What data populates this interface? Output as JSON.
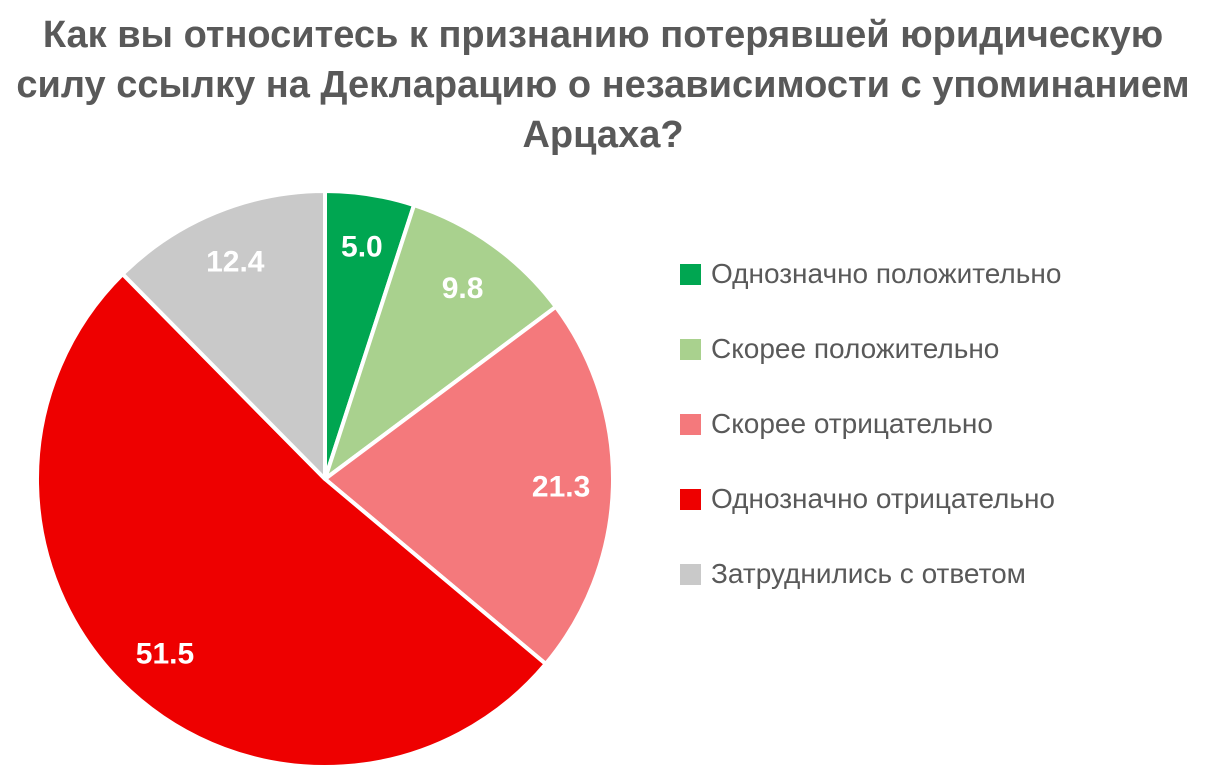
{
  "chart_data": {
    "type": "pie",
    "title": "Как вы относитесь к признанию потерявшей юридическую силу ссылку на Декларацию о независимости с упоминанием Арцаха?",
    "categories": [
      "Однозначно положительно",
      "Скорее положительно",
      "Скорее отрицательно",
      "Однозначно отрицательно",
      "Затруднились с ответом"
    ],
    "values": [
      5.0,
      9.8,
      21.3,
      51.5,
      12.4
    ],
    "data_labels": [
      "5.0",
      "9.8",
      "21.3",
      "51.5",
      "12.4"
    ],
    "slice_colors": [
      "#00A651",
      "#A9D18E",
      "#F4797C",
      "#EE0000",
      "#C9C9C9"
    ],
    "start_angle_deg": 0,
    "direction": "clockwise",
    "legend_position": "right",
    "label_color": "#FFFFFF",
    "title_color": "#595959",
    "legend_text_color": "#595959",
    "background_color": "#FFFFFF"
  }
}
